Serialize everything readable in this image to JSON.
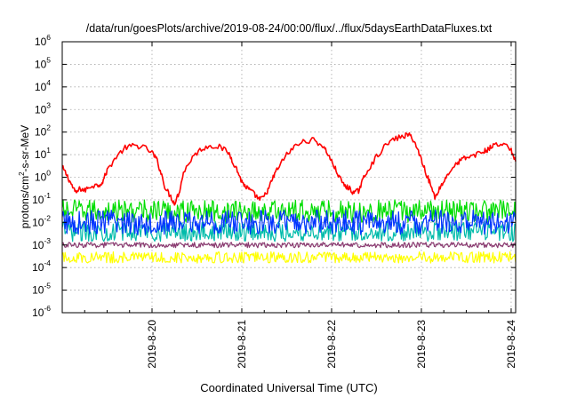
{
  "chart_data": {
    "type": "line",
    "title": "/data/run/goesPlots/archive/2019-08-24/00:00/flux/../flux/5daysEarthDataFluxes.txt",
    "xlabel": "Coordinated Universal Time (UTC)",
    "ylabel_main": "protons/cm",
    "ylabel_sup": "2",
    "ylabel_rest": "-s-sr-MeV",
    "yscale": "log",
    "ylim_exp": [
      -6,
      6
    ],
    "y_ticks": [
      {
        "base": "10",
        "exp": "6",
        "value": 6
      },
      {
        "base": "10",
        "exp": "5",
        "value": 5
      },
      {
        "base": "10",
        "exp": "4",
        "value": 4
      },
      {
        "base": "10",
        "exp": "3",
        "value": 3
      },
      {
        "base": "10",
        "exp": "2",
        "value": 2
      },
      {
        "base": "10",
        "exp": "1",
        "value": 1
      },
      {
        "base": "10",
        "exp": "0",
        "value": 0
      },
      {
        "base": "10",
        "exp": "-1",
        "value": -1
      },
      {
        "base": "10",
        "exp": "-2",
        "value": -2
      },
      {
        "base": "10",
        "exp": "-3",
        "value": -3
      },
      {
        "base": "10",
        "exp": "-4",
        "value": -4
      },
      {
        "base": "10",
        "exp": "-5",
        "value": -5
      },
      {
        "base": "10",
        "exp": "-6",
        "value": -6
      }
    ],
    "xlim_days": [
      19.0,
      24.05
    ],
    "x_ticks": [
      {
        "label": "2019-8-20",
        "day": 20
      },
      {
        "label": "2019-8-21",
        "day": 21
      },
      {
        "label": "2019-8-22",
        "day": 22
      },
      {
        "label": "2019-8-23",
        "day": 23
      },
      {
        "label": "2019-8-24",
        "day": 24
      }
    ],
    "grid": true,
    "series": [
      {
        "color": "#ff0000",
        "points": [
          [
            19.0,
            0.45
          ],
          [
            19.05,
            0.1
          ],
          [
            19.1,
            -0.3
          ],
          [
            19.15,
            -0.7
          ],
          [
            19.2,
            -0.5
          ],
          [
            19.25,
            -0.6
          ],
          [
            19.3,
            -0.4
          ],
          [
            19.4,
            -0.35
          ],
          [
            19.45,
            -0.2
          ],
          [
            19.5,
            0.3
          ],
          [
            19.6,
            0.9
          ],
          [
            19.7,
            1.3
          ],
          [
            19.8,
            1.4
          ],
          [
            19.9,
            1.35
          ],
          [
            20.0,
            1.1
          ],
          [
            20.05,
            0.8
          ],
          [
            20.1,
            0.2
          ],
          [
            20.15,
            -0.5
          ],
          [
            20.2,
            -0.8
          ],
          [
            20.25,
            -1.15
          ],
          [
            20.3,
            -0.7
          ],
          [
            20.35,
            0.2
          ],
          [
            20.45,
            0.9
          ],
          [
            20.55,
            1.25
          ],
          [
            20.65,
            1.4
          ],
          [
            20.75,
            1.35
          ],
          [
            20.85,
            1.1
          ],
          [
            20.9,
            0.7
          ],
          [
            20.95,
            0.3
          ],
          [
            21.0,
            -0.2
          ],
          [
            21.05,
            -0.45
          ],
          [
            21.1,
            -0.6
          ],
          [
            21.15,
            -0.8
          ],
          [
            21.2,
            -1.0
          ],
          [
            21.25,
            -0.85
          ],
          [
            21.3,
            -0.5
          ],
          [
            21.35,
            0.0
          ],
          [
            21.4,
            0.4
          ],
          [
            21.5,
            1.0
          ],
          [
            21.6,
            1.4
          ],
          [
            21.7,
            1.6
          ],
          [
            21.8,
            1.65
          ],
          [
            21.9,
            1.4
          ],
          [
            21.95,
            1.1
          ],
          [
            22.0,
            0.7
          ],
          [
            22.05,
            0.3
          ],
          [
            22.1,
            -0.1
          ],
          [
            22.15,
            -0.4
          ],
          [
            22.2,
            -0.5
          ],
          [
            22.25,
            -0.7
          ],
          [
            22.3,
            -0.6
          ],
          [
            22.35,
            -0.1
          ],
          [
            22.4,
            0.3
          ],
          [
            22.5,
            0.9
          ],
          [
            22.6,
            1.4
          ],
          [
            22.7,
            1.7
          ],
          [
            22.8,
            1.8
          ],
          [
            22.85,
            1.9
          ],
          [
            22.9,
            1.75
          ],
          [
            22.95,
            1.3
          ],
          [
            23.0,
            0.8
          ],
          [
            23.05,
            0.2
          ],
          [
            23.1,
            -0.3
          ],
          [
            23.15,
            -0.9
          ],
          [
            23.2,
            -0.5
          ],
          [
            23.25,
            -0.2
          ],
          [
            23.3,
            0.2
          ],
          [
            23.4,
            0.6
          ],
          [
            23.45,
            0.8
          ],
          [
            23.5,
            0.85
          ],
          [
            23.6,
            1.0
          ],
          [
            23.7,
            1.15
          ],
          [
            23.75,
            1.25
          ],
          [
            23.8,
            1.4
          ],
          [
            23.9,
            1.5
          ],
          [
            24.0,
            1.2
          ],
          [
            24.05,
            0.7
          ]
        ],
        "jitter": 0.12
      },
      {
        "color": "#00dd00",
        "base": -1.5,
        "amp": 0.5
      },
      {
        "color": "#00bbaa",
        "base": -2.4,
        "amp": 0.45
      },
      {
        "color": "#0033ff",
        "base": -2.0,
        "amp": 0.55
      },
      {
        "color": "#8a3a70",
        "base": -3.0,
        "amp": 0.12
      },
      {
        "color": "#ffff00",
        "base": -3.55,
        "amp": 0.25
      }
    ]
  }
}
